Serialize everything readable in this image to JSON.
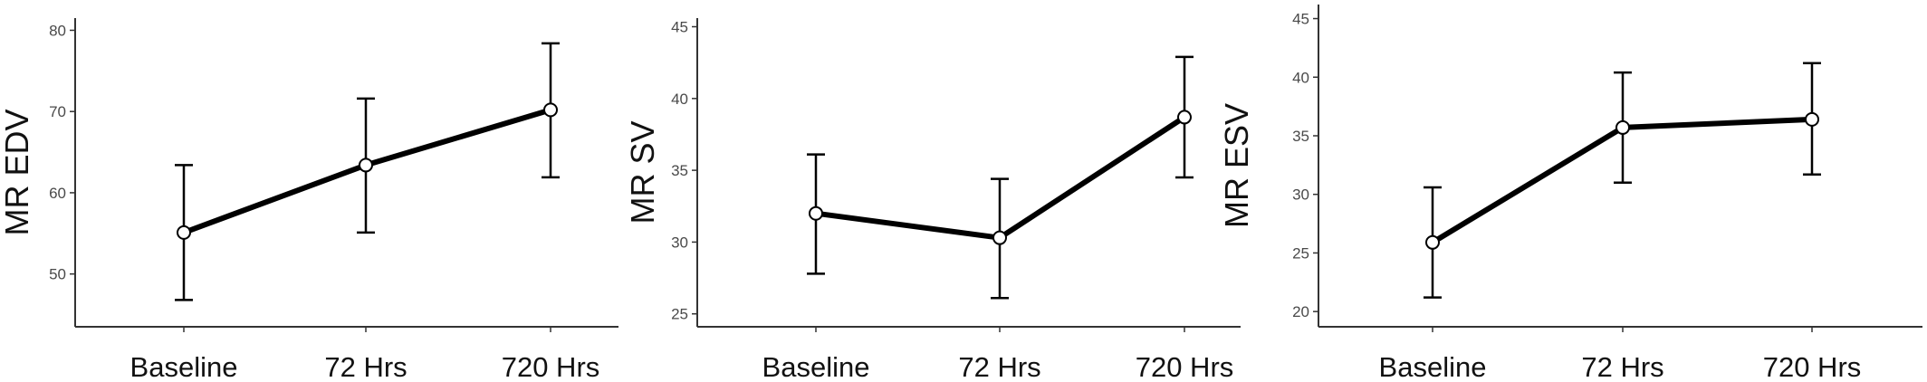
{
  "chart_data": [
    {
      "type": "line",
      "categories": [
        "Baseline",
        "72 Hrs",
        "720 Hrs"
      ],
      "values": [
        55.1,
        63.4,
        70.2
      ],
      "error_low": [
        46.8,
        55.1,
        61.9
      ],
      "error_high": [
        63.4,
        71.6,
        78.4
      ],
      "ylabel": "MR EDV",
      "ylim": [
        43.5,
        81.5
      ],
      "yticks": [
        "50",
        "60",
        "70",
        "80"
      ],
      "ytick_values": [
        50,
        60,
        70,
        80
      ],
      "grid": false
    },
    {
      "type": "line",
      "categories": [
        "Baseline",
        "72 Hrs",
        "720 Hrs"
      ],
      "values": [
        32.0,
        30.3,
        38.7
      ],
      "error_low": [
        27.8,
        26.1,
        34.5
      ],
      "error_high": [
        36.1,
        34.4,
        42.9
      ],
      "ylabel": "MR SV",
      "ylim": [
        24.1,
        45.6
      ],
      "yticks": [
        "25",
        "30",
        "35",
        "40",
        "45"
      ],
      "ytick_values": [
        25,
        30,
        35,
        40,
        45
      ],
      "grid": false
    },
    {
      "type": "line",
      "categories": [
        "Baseline",
        "72 Hrs",
        "720 Hrs"
      ],
      "values": [
        25.9,
        35.7,
        36.4
      ],
      "error_low": [
        21.2,
        31.0,
        31.7
      ],
      "error_high": [
        30.6,
        40.4,
        41.2
      ],
      "ylabel": "MR ESV",
      "ylim": [
        18.7,
        46.2
      ],
      "yticks": [
        "20",
        "25",
        "30",
        "35",
        "40",
        "45"
      ],
      "ytick_values": [
        20,
        25,
        30,
        35,
        40,
        45
      ],
      "grid": false
    }
  ]
}
